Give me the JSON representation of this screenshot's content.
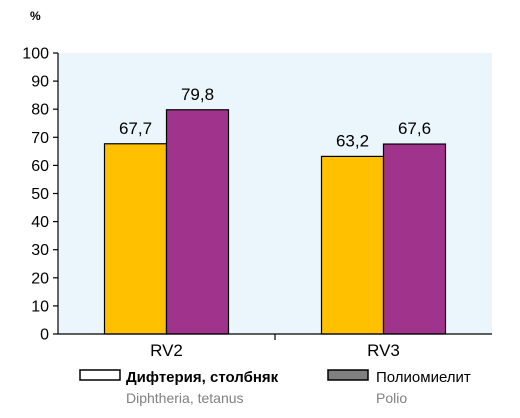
{
  "chart_data": {
    "type": "bar",
    "unit_label": "%",
    "categories": [
      "RV2",
      "RV3"
    ],
    "series": [
      {
        "name": "Дифтерия, столбняк",
        "name_en": "Diphtheria, tetanus",
        "color": "#FFC000",
        "legend_swatch_color": "#FFFFFF",
        "values": [
          67.7,
          63.2
        ],
        "labels": [
          "67,7",
          "63,2"
        ]
      },
      {
        "name": "Полиомиелит",
        "name_en": "Polio",
        "color": "#A0348C",
        "legend_swatch_color": "#808080",
        "values": [
          79.8,
          67.6
        ],
        "labels": [
          "79,8",
          "67,6"
        ]
      }
    ],
    "ylim": [
      0,
      100
    ],
    "yticks": [
      0,
      10,
      20,
      30,
      40,
      50,
      60,
      70,
      80,
      90,
      100
    ],
    "plot_background": "#EAF6FB",
    "grid": false,
    "legend_position": "bottom"
  }
}
